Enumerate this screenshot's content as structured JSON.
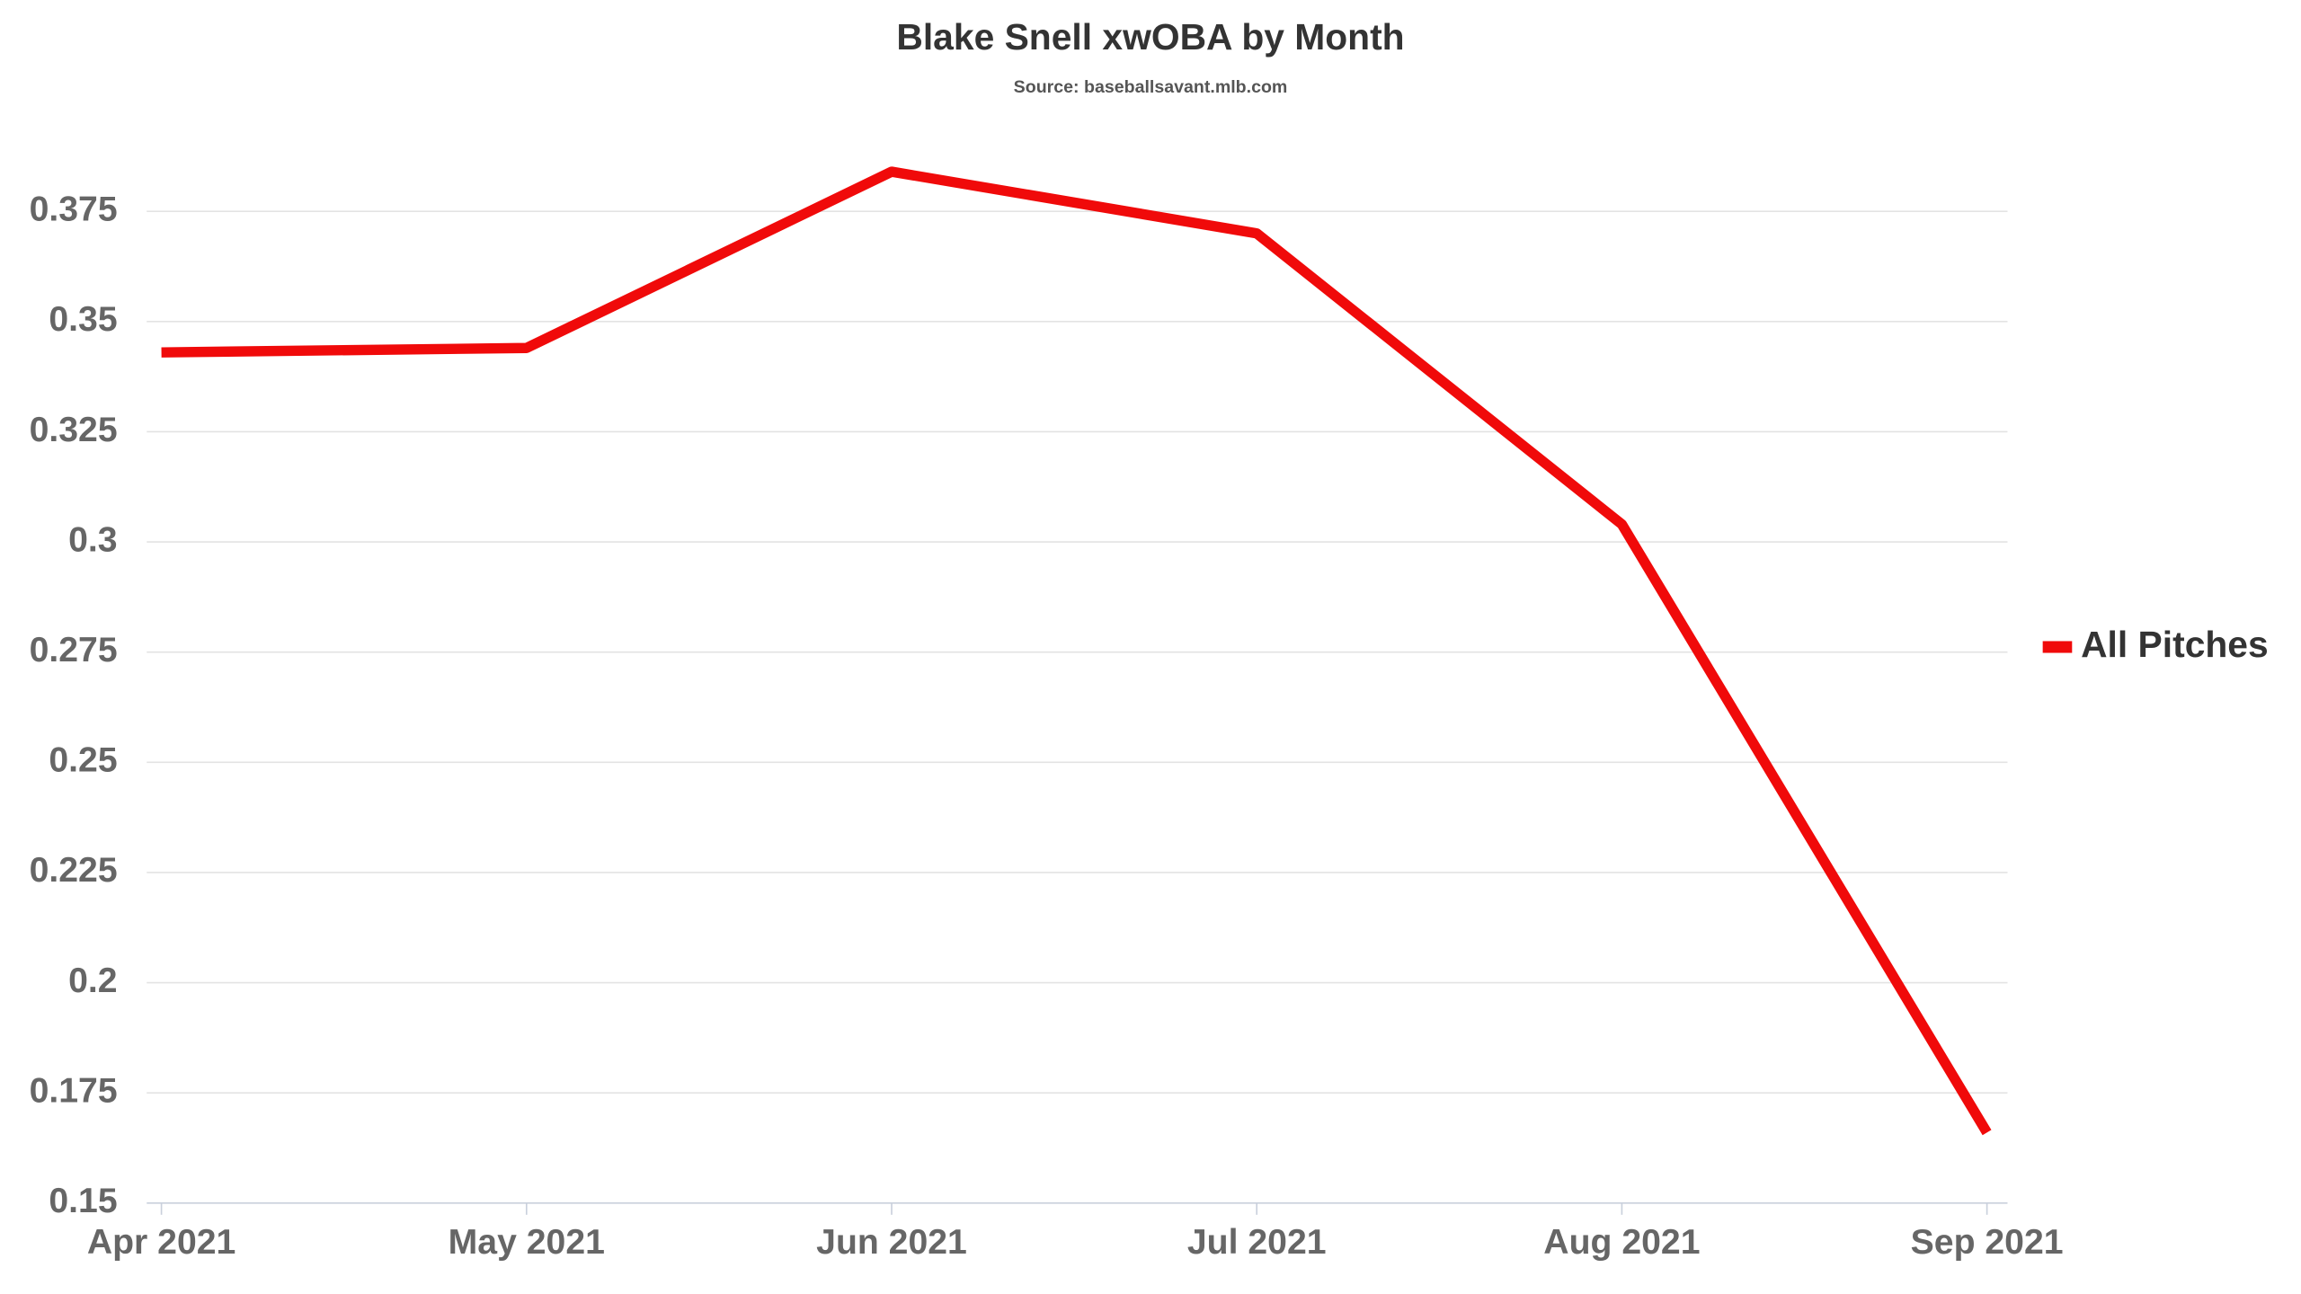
{
  "chart_data": {
    "type": "line",
    "title": "Blake Snell xwOBA by Month",
    "subtitle": "Source: baseballsavant.mlb.com",
    "categories": [
      "Apr 2021",
      "May 2021",
      "Jun 2021",
      "Jul 2021",
      "Aug 2021",
      "Sep 2021"
    ],
    "series": [
      {
        "name": "All Pitches",
        "color": "#f00a0a",
        "values": [
          0.343,
          0.344,
          0.384,
          0.37,
          0.304,
          0.166
        ]
      }
    ],
    "ylim": [
      0.15,
      0.39
    ],
    "yticks": [
      0.15,
      0.175,
      0.2,
      0.225,
      0.25,
      0.275,
      0.3,
      0.325,
      0.35,
      0.375
    ],
    "grid": true,
    "legend": "right"
  }
}
